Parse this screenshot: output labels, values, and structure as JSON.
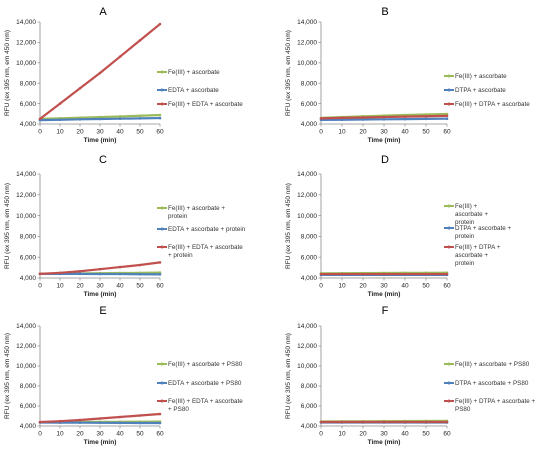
{
  "colors": {
    "green": "#9bbb59",
    "blue": "#4f81bd",
    "red": "#c0504d",
    "axis": "#8a8a8a"
  },
  "chart_data": [
    {
      "type": "line",
      "panel": "A",
      "xlabel": "Time (min)",
      "ylabel": "RFU (ex 395 nm, em 450 nm)",
      "xlim": [
        0,
        60
      ],
      "ylim": [
        4000,
        14000
      ],
      "xticks": [
        "0",
        "10",
        "20",
        "30",
        "40",
        "50",
        "60"
      ],
      "yticks": [
        "4,000",
        "6,000",
        "8,000",
        "10,000",
        "12,000",
        "14,000"
      ],
      "x": [
        0,
        10,
        20,
        30,
        40,
        50,
        60
      ],
      "series": [
        {
          "name": "Fe(III) + ascorbate",
          "color": "green",
          "values": [
            4500,
            4560,
            4620,
            4680,
            4740,
            4810,
            4880
          ]
        },
        {
          "name": "EDTA + ascorbate",
          "color": "blue",
          "values": [
            4380,
            4420,
            4460,
            4490,
            4520,
            4550,
            4580
          ]
        },
        {
          "name": "Fe(III) + EDTA + ascorbate",
          "color": "red",
          "values": [
            4500,
            6000,
            7500,
            9000,
            10600,
            12200,
            13800
          ]
        }
      ]
    },
    {
      "type": "line",
      "panel": "B",
      "xlabel": "Time (min)",
      "ylabel": "RFU (ex 395 nm, em 450 nm)",
      "xlim": [
        0,
        60
      ],
      "ylim": [
        4000,
        14000
      ],
      "xticks": [
        "0",
        "10",
        "20",
        "30",
        "40",
        "50",
        "60"
      ],
      "yticks": [
        "4,000",
        "6,000",
        "8,000",
        "10,000",
        "12,000",
        "14,000"
      ],
      "x": [
        0,
        10,
        20,
        30,
        40,
        50,
        60
      ],
      "series": [
        {
          "name": "Fe(III) + ascorbate",
          "color": "green",
          "values": [
            4600,
            4680,
            4750,
            4820,
            4880,
            4930,
            4980
          ]
        },
        {
          "name": "DTPA + ascorbate",
          "color": "blue",
          "values": [
            4400,
            4420,
            4440,
            4460,
            4480,
            4500,
            4520
          ]
        },
        {
          "name": "Fe(III) + DTPA + ascorbate",
          "color": "red",
          "values": [
            4550,
            4600,
            4640,
            4680,
            4720,
            4760,
            4800
          ]
        }
      ]
    },
    {
      "type": "line",
      "panel": "C",
      "xlabel": "Time (min)",
      "ylabel": "RFU (ex 395 nm, em 450 nm)",
      "xlim": [
        0,
        60
      ],
      "ylim": [
        4000,
        14000
      ],
      "xticks": [
        "0",
        "10",
        "20",
        "30",
        "40",
        "50",
        "60"
      ],
      "yticks": [
        "4,000",
        "6,000",
        "8,000",
        "10,000",
        "12,000",
        "14,000"
      ],
      "x": [
        0,
        10,
        20,
        30,
        40,
        50,
        60
      ],
      "series": [
        {
          "name": "Fe(III) + ascorbate + protein",
          "color": "green",
          "values": [
            4400,
            4420,
            4440,
            4460,
            4480,
            4500,
            4520
          ]
        },
        {
          "name": "EDTA + ascorbate + protein",
          "color": "blue",
          "values": [
            4400,
            4400,
            4400,
            4380,
            4380,
            4360,
            4350
          ]
        },
        {
          "name": "Fe(III) + EDTA + ascorbate + protein",
          "color": "red",
          "values": [
            4400,
            4500,
            4650,
            4850,
            5050,
            5250,
            5500
          ]
        }
      ]
    },
    {
      "type": "line",
      "panel": "D",
      "xlabel": "Time (min)",
      "ylabel": "RFU (ex 395 nm, em 450 nm)",
      "xlim": [
        0,
        60
      ],
      "ylim": [
        4000,
        14000
      ],
      "xticks": [
        "0",
        "10",
        "20",
        "30",
        "40",
        "50",
        "60"
      ],
      "yticks": [
        "4,000",
        "6,000",
        "8,000",
        "10,000",
        "12,000",
        "14,000"
      ],
      "x": [
        0,
        10,
        20,
        30,
        40,
        50,
        60
      ],
      "series": [
        {
          "name": "Fe(III) + ascorbate + protein",
          "color": "green",
          "values": [
            4450,
            4460,
            4470,
            4480,
            4490,
            4500,
            4510
          ]
        },
        {
          "name": "DTPA + ascorbate + protein",
          "color": "blue",
          "values": [
            4300,
            4300,
            4300,
            4300,
            4300,
            4300,
            4300
          ]
        },
        {
          "name": "Fe(III) + DTPA + ascorbate + protein",
          "color": "red",
          "values": [
            4380,
            4380,
            4380,
            4380,
            4380,
            4380,
            4380
          ]
        }
      ]
    },
    {
      "type": "line",
      "panel": "E",
      "xlabel": "Time (min)",
      "ylabel": "RFU (ex 395 nm, em 450 nm)",
      "xlim": [
        0,
        60
      ],
      "ylim": [
        4000,
        14000
      ],
      "xticks": [
        "0",
        "10",
        "20",
        "30",
        "40",
        "50",
        "60"
      ],
      "yticks": [
        "4,000",
        "6,000",
        "8,000",
        "10,000",
        "12,000",
        "14,000"
      ],
      "x": [
        0,
        10,
        20,
        30,
        40,
        50,
        60
      ],
      "series": [
        {
          "name": "Fe(III) + ascorbate + PS80",
          "color": "green",
          "values": [
            4380,
            4390,
            4400,
            4410,
            4420,
            4430,
            4440
          ]
        },
        {
          "name": "EDTA + ascorbate + PS80",
          "color": "blue",
          "values": [
            4350,
            4340,
            4330,
            4320,
            4310,
            4300,
            4300
          ]
        },
        {
          "name": "Fe(III) + EDTA + ascorbate + PS80",
          "color": "red",
          "values": [
            4400,
            4480,
            4600,
            4750,
            4900,
            5050,
            5200
          ]
        }
      ]
    },
    {
      "type": "line",
      "panel": "F",
      "xlabel": "Time (min)",
      "ylabel": "RFU (ex 395 nm, em 450 nm)",
      "xlim": [
        0,
        60
      ],
      "ylim": [
        4000,
        14000
      ],
      "xticks": [
        "0",
        "10",
        "20",
        "30",
        "40",
        "50",
        "60"
      ],
      "yticks": [
        "4,000",
        "6,000",
        "8,000",
        "10,000",
        "12,000",
        "14,000"
      ],
      "x": [
        0,
        10,
        20,
        30,
        40,
        50,
        60
      ],
      "series": [
        {
          "name": "Fe(III) + ascorbate + PS80",
          "color": "green",
          "values": [
            4450,
            4460,
            4470,
            4480,
            4490,
            4500,
            4510
          ]
        },
        {
          "name": "DTPA + ascorbate + PS80",
          "color": "blue",
          "values": [
            4350,
            4350,
            4350,
            4350,
            4350,
            4350,
            4350
          ]
        },
        {
          "name": "Fe(III) + DTPA + ascorbate + PS80",
          "color": "red",
          "values": [
            4400,
            4400,
            4400,
            4400,
            4400,
            4400,
            4400
          ]
        }
      ]
    }
  ]
}
